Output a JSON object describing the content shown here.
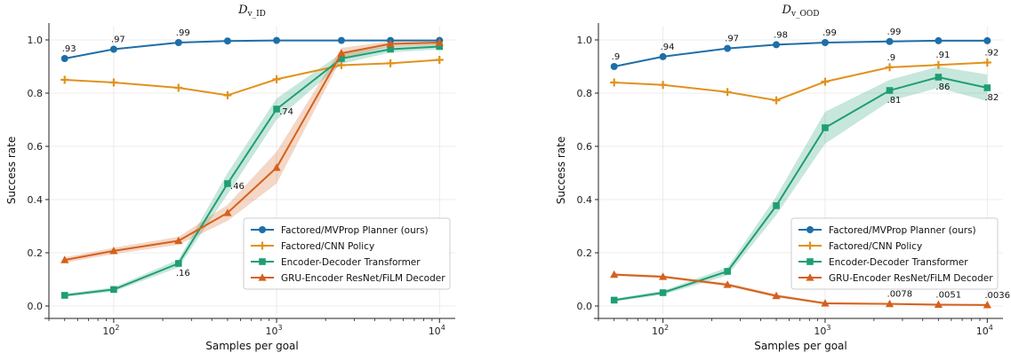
{
  "chart_data": [
    {
      "type": "line",
      "title": {
        "main": "D",
        "sub": "v_ID"
      },
      "xlabel": "Samples per goal",
      "ylabel": "Success rate",
      "xscale": "log",
      "xlim": [
        40,
        12500
      ],
      "ylim": [
        -0.03,
        1.05
      ],
      "yticks": [
        "0.0",
        "0.2",
        "0.4",
        "0.6",
        "0.8",
        "1.0"
      ],
      "xticks": [
        {
          "base": "10",
          "exp": "2",
          "value": 100
        },
        {
          "base": "10",
          "exp": "3",
          "value": 1000
        },
        {
          "base": "10",
          "exp": "4",
          "value": 10000
        }
      ],
      "grid": true,
      "legend_position": "lower-right",
      "x": [
        50,
        100,
        250,
        500,
        1000,
        2500,
        5000,
        10000
      ],
      "series": [
        {
          "name": "Factored/MVProp Planner (ours)",
          "color": "#1f6ea8",
          "marker": "circle",
          "values": [
            0.93,
            0.965,
            0.99,
            0.996,
            0.998,
            0.998,
            0.998,
            0.998
          ]
        },
        {
          "name": "Factored/CNN Policy",
          "color": "#e0921c",
          "marker": "plus",
          "values": [
            0.85,
            0.84,
            0.82,
            0.792,
            0.852,
            0.905,
            0.912,
            0.925
          ]
        },
        {
          "name": "Encoder-Decoder Transformer",
          "color": "#1f9e73",
          "marker": "square",
          "values": [
            0.04,
            0.062,
            0.16,
            0.46,
            0.74,
            0.93,
            0.965,
            0.975
          ],
          "band": [
            0.006,
            0.008,
            0.015,
            0.04,
            0.04,
            0.02,
            0.012,
            0.01
          ]
        },
        {
          "name": "GRU-Encoder ResNet/FiLM Decoder",
          "color": "#d4611c",
          "marker": "triangle",
          "values": [
            0.173,
            0.207,
            0.245,
            0.35,
            0.52,
            0.95,
            0.985,
            0.99
          ],
          "band": [
            0.01,
            0.012,
            0.015,
            0.03,
            0.06,
            0.02,
            0.01,
            0.01
          ]
        }
      ],
      "annotations": [
        {
          "text": ".93",
          "x": 50,
          "y": 0.93
        },
        {
          "text": ".97",
          "x": 100,
          "y": 0.965
        },
        {
          "text": ".99",
          "x": 250,
          "y": 0.99
        },
        {
          "text": ".46",
          "x": 500,
          "y": 0.46
        },
        {
          "text": ".74",
          "x": 1000,
          "y": 0.74
        },
        {
          "text": ".16",
          "x": 250,
          "y": 0.16
        }
      ]
    },
    {
      "type": "line",
      "title": {
        "main": "D",
        "sub": "v_OOD"
      },
      "xlabel": "Samples per goal",
      "ylabel": "Success rate",
      "xscale": "log",
      "xlim": [
        40,
        12500
      ],
      "ylim": [
        -0.03,
        1.05
      ],
      "yticks": [
        "0.0",
        "0.2",
        "0.4",
        "0.6",
        "0.8",
        "1.0"
      ],
      "xticks": [
        {
          "base": "10",
          "exp": "2",
          "value": 100
        },
        {
          "base": "10",
          "exp": "3",
          "value": 1000
        },
        {
          "base": "10",
          "exp": "4",
          "value": 10000
        }
      ],
      "grid": true,
      "legend_position": "lower-right",
      "x": [
        50,
        100,
        250,
        500,
        1000,
        2500,
        5000,
        10000
      ],
      "series": [
        {
          "name": "Factored/MVProp Planner (ours)",
          "color": "#1f6ea8",
          "marker": "circle",
          "values": [
            0.9,
            0.937,
            0.968,
            0.982,
            0.99,
            0.994,
            0.997,
            0.997
          ]
        },
        {
          "name": "Factored/CNN Policy",
          "color": "#e0921c",
          "marker": "plus",
          "values": [
            0.84,
            0.831,
            0.804,
            0.773,
            0.843,
            0.897,
            0.906,
            0.915
          ]
        },
        {
          "name": "Encoder-Decoder Transformer",
          "color": "#1f9e73",
          "marker": "square",
          "values": [
            0.022,
            0.05,
            0.13,
            0.377,
            0.67,
            0.81,
            0.86,
            0.82
          ],
          "band": [
            0.005,
            0.008,
            0.015,
            0.035,
            0.06,
            0.04,
            0.04,
            0.05
          ]
        },
        {
          "name": "GRU-Encoder ResNet/FiLM Decoder",
          "color": "#d4611c",
          "marker": "triangle",
          "values": [
            0.118,
            0.11,
            0.08,
            0.038,
            0.01,
            0.0078,
            0.0051,
            0.0036
          ],
          "band": [
            0.005,
            0.005,
            0.006,
            0.006,
            0.004,
            0.003,
            0.003,
            0.002
          ]
        }
      ],
      "annotations": [
        {
          "text": ".9",
          "x": 50,
          "y": 0.9
        },
        {
          "text": ".94",
          "x": 100,
          "y": 0.937
        },
        {
          "text": ".97",
          "x": 250,
          "y": 0.968
        },
        {
          "text": ".98",
          "x": 500,
          "y": 0.982
        },
        {
          "text": ".99",
          "x": 1000,
          "y": 0.99
        },
        {
          "text": ".99",
          "x": 2500,
          "y": 0.994
        },
        {
          "text": ".9",
          "x": 2500,
          "y": 0.897
        },
        {
          "text": ".91",
          "x": 5000,
          "y": 0.906
        },
        {
          "text": ".92",
          "x": 10000,
          "y": 0.915
        },
        {
          "text": ".81",
          "x": 2500,
          "y": 0.81
        },
        {
          "text": ".86",
          "x": 5000,
          "y": 0.86
        },
        {
          "text": ".82",
          "x": 10000,
          "y": 0.82
        },
        {
          "text": ".0078",
          "x": 2500,
          "y": 0.0078
        },
        {
          "text": ".0051",
          "x": 5000,
          "y": 0.0051
        },
        {
          "text": ".0036",
          "x": 10000,
          "y": 0.0036
        }
      ]
    }
  ]
}
